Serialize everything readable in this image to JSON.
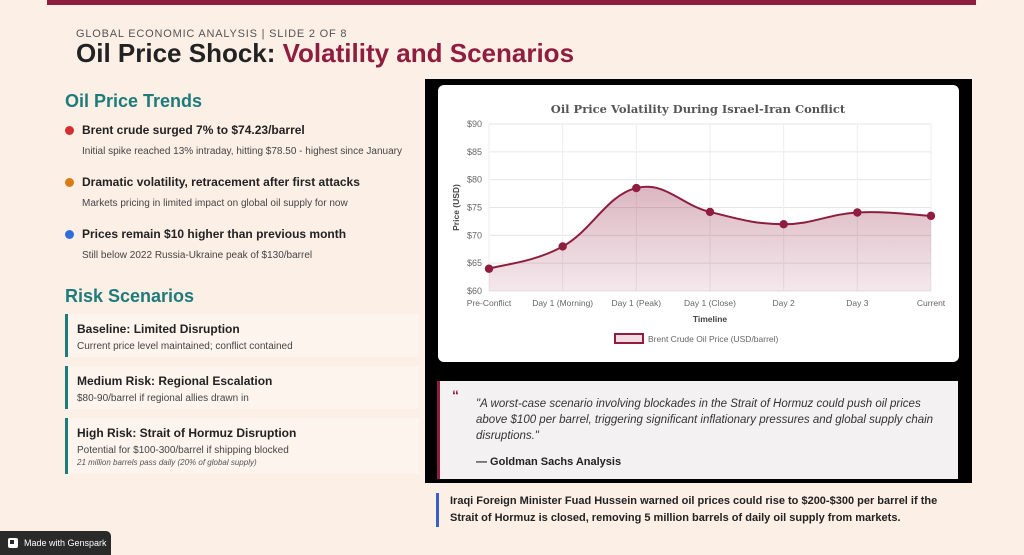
{
  "header": {
    "eyebrow": "GLOBAL ECONOMIC ANALYSIS | SLIDE 2 OF 8",
    "title_main": "Oil Price Shock: ",
    "title_accent": "Volatility and Scenarios"
  },
  "trends": {
    "heading": "Oil Price Trends",
    "items": [
      {
        "title": "Brent crude surged 7% to $74.23/barrel",
        "sub": "Initial spike reached 13% intraday, hitting $78.50 - highest since January",
        "color": "#d32f2f"
      },
      {
        "title": "Dramatic volatility, retracement after first attacks",
        "sub": "Markets pricing in limited impact on global oil supply for now",
        "color": "#d97b12"
      },
      {
        "title": "Prices remain $10 higher than previous month",
        "sub": "Still below 2022 Russia-Ukraine peak of $130/barrel",
        "color": "#2f6fdb"
      }
    ]
  },
  "risks": {
    "heading": "Risk Scenarios",
    "items": [
      {
        "title": "Baseline: Limited Disruption",
        "sub": "Current price level maintained; conflict contained",
        "note": ""
      },
      {
        "title": "Medium Risk: Regional Escalation",
        "sub": "$80-90/barrel if regional allies drawn in",
        "note": ""
      },
      {
        "title": "High Risk: Strait of Hormuz Disruption",
        "sub": "Potential for $100-300/barrel if shipping blocked",
        "note": "21 million barrels pass daily (20% of global supply)"
      }
    ]
  },
  "chart_data": {
    "type": "area",
    "title": "Oil Price Volatility During Israel-Iran Conflict",
    "xlabel": "Timeline",
    "ylabel": "Price (USD)",
    "categories": [
      "Pre-Conflict",
      "Day 1 (Morning)",
      "Day 1 (Peak)",
      "Day 1 (Close)",
      "Day 2",
      "Day 3",
      "Current"
    ],
    "series": [
      {
        "name": "Brent Crude Oil Price (USD/barrel)",
        "values": [
          64,
          68,
          78.5,
          74.2,
          72,
          74.1,
          73.5
        ]
      }
    ],
    "ylim": [
      60,
      90
    ],
    "yticks": [
      "$60",
      "$65",
      "$70",
      "$75",
      "$80",
      "$85",
      "$90"
    ],
    "grid": true,
    "legend": "bottom",
    "colors": {
      "line": "#8f1d3f",
      "fill": "#8f1d3f"
    }
  },
  "quote": {
    "mark": "“",
    "text": "\"A worst-case scenario involving blockades in the Strait of Hormuz could push oil prices above $100 per barrel, triggering significant inflationary pressures and global supply chain disruptions.\"",
    "source": "— Goldman Sachs Analysis"
  },
  "callout": "Iraqi Foreign Minister Fuad Hussein warned oil prices could rise to $200-$300 per barrel if the Strait of Hormuz is closed, removing 5 million barrels of daily oil supply from markets.",
  "badge": "Made with Genspark",
  "colors": {
    "accent": "#8f1d3f",
    "teal": "#1f7a7a",
    "background": "#fcefe6"
  }
}
